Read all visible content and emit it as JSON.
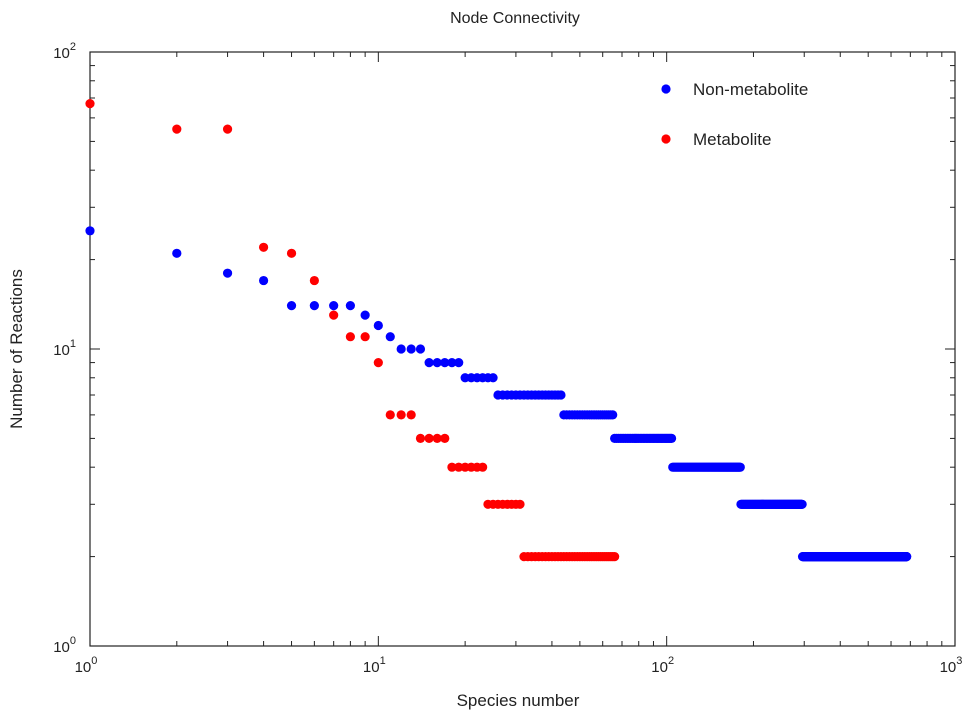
{
  "chart_data": {
    "type": "scatter",
    "title": "Node Connectivity",
    "xlabel": "Species number",
    "ylabel": "Number of Reactions",
    "xscale": "log",
    "yscale": "log",
    "xlim": [
      1,
      1000
    ],
    "ylim": [
      1,
      100
    ],
    "grid": false,
    "legend_position": "top-right",
    "x_tick_labels": [
      {
        "base": "10",
        "exp": "0"
      },
      {
        "base": "10",
        "exp": "1"
      },
      {
        "base": "10",
        "exp": "2"
      },
      {
        "base": "10",
        "exp": "3"
      }
    ],
    "y_tick_labels": [
      {
        "base": "10",
        "exp": "0"
      },
      {
        "base": "10",
        "exp": "1"
      },
      {
        "base": "10",
        "exp": "2"
      }
    ],
    "series": [
      {
        "name": "Non-metabolite",
        "color": "#0000ff",
        "points": [
          [
            1,
            25
          ],
          [
            2,
            21
          ],
          [
            3,
            18
          ],
          [
            4,
            17
          ],
          [
            5,
            14
          ],
          [
            6,
            14
          ],
          [
            7,
            14
          ],
          [
            8,
            14
          ],
          [
            9,
            13
          ],
          [
            10,
            12
          ],
          [
            11,
            11
          ],
          {
            "x_start": 12,
            "x_end": 14,
            "y": 10
          },
          {
            "x_start": 15,
            "x_end": 19,
            "y": 9
          },
          {
            "x_start": 20,
            "x_end": 25,
            "y": 8
          },
          {
            "x_start": 26,
            "x_end": 43,
            "y": 7
          },
          {
            "x_start": 44,
            "x_end": 65,
            "y": 6
          },
          {
            "x_start": 66,
            "x_end": 104,
            "y": 5
          },
          {
            "x_start": 105,
            "x_end": 180,
            "y": 4
          },
          {
            "x_start": 181,
            "x_end": 295,
            "y": 3
          },
          {
            "x_start": 296,
            "x_end": 680,
            "y": 2
          }
        ]
      },
      {
        "name": "Metabolite",
        "color": "#ff0000",
        "points": [
          [
            1,
            67
          ],
          [
            2,
            55
          ],
          [
            3,
            55
          ],
          [
            4,
            22
          ],
          [
            5,
            21
          ],
          [
            6,
            17
          ],
          [
            7,
            13
          ],
          [
            8,
            11
          ],
          [
            9,
            11
          ],
          [
            10,
            9
          ],
          {
            "x_start": 11,
            "x_end": 13,
            "y": 6
          },
          {
            "x_start": 14,
            "x_end": 17,
            "y": 5
          },
          {
            "x_start": 18,
            "x_end": 23,
            "y": 4
          },
          {
            "x_start": 24,
            "x_end": 31,
            "y": 3
          },
          {
            "x_start": 32,
            "x_end": 66,
            "y": 2
          }
        ]
      }
    ]
  }
}
